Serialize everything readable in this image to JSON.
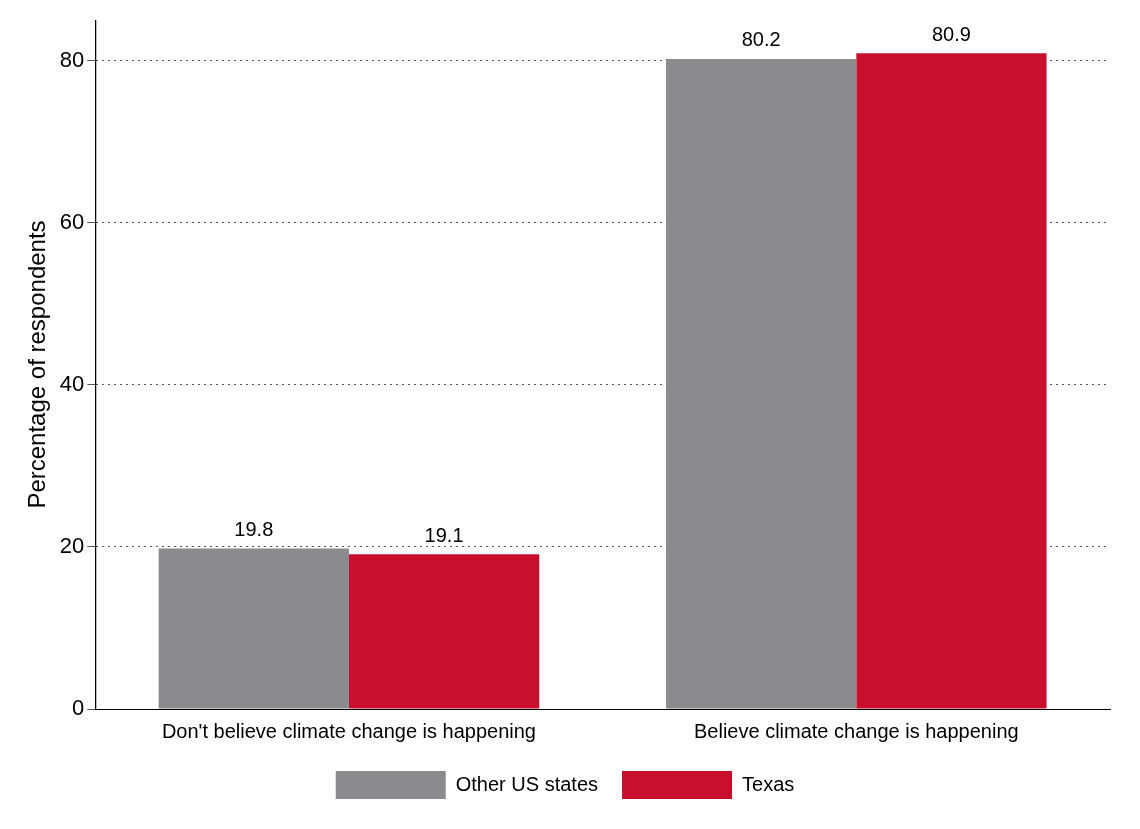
{
  "chart_data": {
    "type": "bar",
    "y_label": "Percentage of respondents",
    "categories": [
      "Don't believe climate change is happening",
      "Believe climate change is happening"
    ],
    "series": [
      {
        "name": "Other US states",
        "color": "#898b8e",
        "values": [
          19.8,
          80.2
        ]
      },
      {
        "name": "Texas",
        "color": "#c8102e",
        "values": [
          19.1,
          80.9
        ]
      }
    ],
    "ylim": [
      0,
      85
    ],
    "yticks": [
      0,
      20,
      40,
      60,
      80
    ],
    "grid": true,
    "legend": "bottom",
    "data_labels": true
  }
}
